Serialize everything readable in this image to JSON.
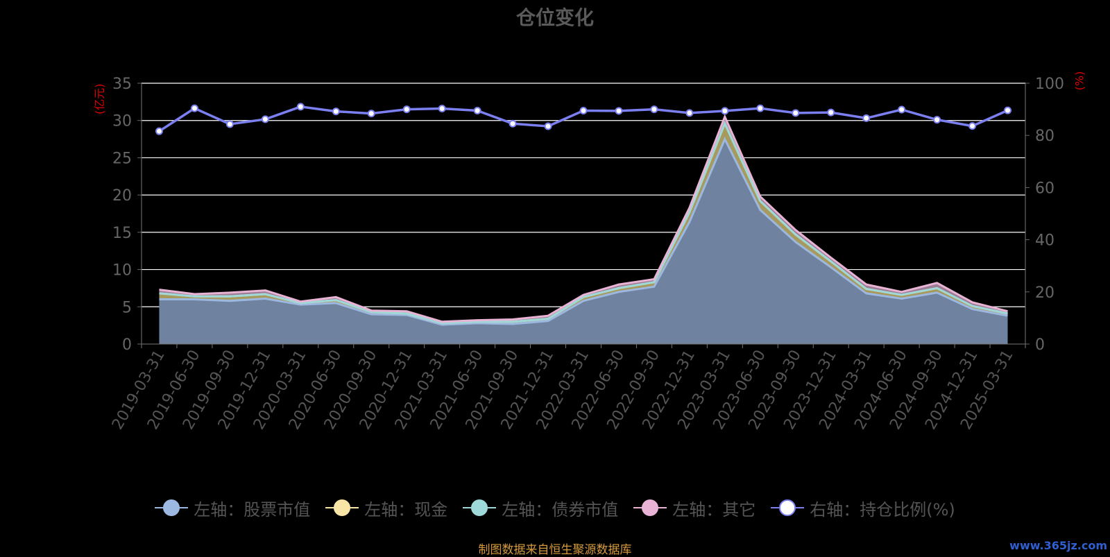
{
  "title": "仓位变化",
  "source_note": "制图数据来自恒生聚源数据库",
  "watermark": "www.365jz.com",
  "colors": {
    "background": "#000000",
    "stock": "#9db8e0",
    "cash": "#f9e5a6",
    "bond": "#9fd8d8",
    "other": "#e8b3d4",
    "ratio": "#7b7ff0",
    "axis_unit_label": "#e00000",
    "source_text": "#d59a3a",
    "grid": "#ffffff"
  },
  "chart_data": {
    "type": "area",
    "categories": [
      "2019-03-31",
      "2019-06-30",
      "2019-09-30",
      "2019-12-31",
      "2020-03-31",
      "2020-06-30",
      "2020-09-30",
      "2020-12-31",
      "2021-03-31",
      "2021-06-30",
      "2021-09-30",
      "2021-12-31",
      "2022-03-31",
      "2022-06-30",
      "2022-09-30",
      "2022-12-31",
      "2023-03-31",
      "2023-06-30",
      "2023-09-30",
      "2023-12-31",
      "2024-03-31",
      "2024-06-30",
      "2024-09-30",
      "2024-12-31",
      "2025-03-31"
    ],
    "y_left": {
      "label": "(亿元)",
      "min": 0,
      "max": 35,
      "ticks": [
        0,
        5,
        10,
        15,
        20,
        25,
        30,
        35
      ]
    },
    "y_right": {
      "label": "(%)",
      "min": 0,
      "max": 100,
      "ticks": [
        0,
        20,
        40,
        60,
        80,
        100
      ]
    },
    "grid": true,
    "legend_position": "bottom",
    "series": [
      {
        "name": "左轴：股票市值",
        "axis": "left",
        "stack": true,
        "color_key": "stock",
        "values": [
          6.0,
          6.0,
          5.8,
          6.1,
          5.3,
          5.5,
          4.0,
          3.9,
          2.6,
          2.8,
          2.7,
          3.1,
          5.8,
          7.0,
          7.7,
          16.4,
          27.5,
          18.0,
          13.7,
          10.3,
          6.8,
          6.1,
          6.9,
          4.7,
          3.8
        ]
      },
      {
        "name": "左轴：现金",
        "axis": "left",
        "stack": true,
        "color_key": "cash",
        "values": [
          0.8,
          0.4,
          0.6,
          0.6,
          0.2,
          0.4,
          0.3,
          0.2,
          0.2,
          0.2,
          0.3,
          0.3,
          0.5,
          0.5,
          0.6,
          1.3,
          2.1,
          1.2,
          1.0,
          0.8,
          0.6,
          0.5,
          0.6,
          0.4,
          0.3
        ]
      },
      {
        "name": "左轴：债券市值",
        "axis": "left",
        "stack": true,
        "color_key": "bond",
        "values": [
          0,
          0,
          0,
          0,
          0,
          0,
          0,
          0,
          0,
          0,
          0,
          0,
          0,
          0,
          0,
          0,
          0,
          0,
          0,
          0,
          0,
          0,
          0,
          0,
          0
        ]
      },
      {
        "name": "左轴：其它",
        "axis": "left",
        "stack": true,
        "color_key": "other",
        "values": [
          0.5,
          0.3,
          0.5,
          0.5,
          0.2,
          0.4,
          0.2,
          0.3,
          0.2,
          0.2,
          0.3,
          0.4,
          0.3,
          0.5,
          0.4,
          0.6,
          0.9,
          0.6,
          0.6,
          0.5,
          0.6,
          0.4,
          0.7,
          0.5,
          0.3
        ]
      },
      {
        "name": "右轴：持仓比例(%)",
        "axis": "right",
        "stack": false,
        "color_key": "ratio",
        "values": [
          81.6,
          90.4,
          84.3,
          86.2,
          91.0,
          89.2,
          88.4,
          90.0,
          90.3,
          89.5,
          84.5,
          83.5,
          89.5,
          89.4,
          90.0,
          88.6,
          89.4,
          90.4,
          88.6,
          88.8,
          86.6,
          89.9,
          86.0,
          83.6,
          89.6
        ]
      }
    ]
  }
}
